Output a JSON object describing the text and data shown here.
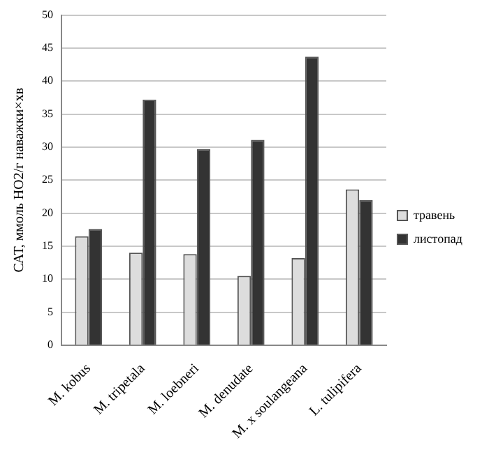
{
  "chart_data": {
    "type": "bar",
    "ylabel": "САТ, ммоль НО2/г наважки×хв",
    "categories": [
      "M. kobus",
      "M. tripetala",
      "M. loebneri",
      "M. denudate",
      "M. x soulangeana",
      "L. tulipifera"
    ],
    "series": [
      {
        "name": "травень",
        "color": "#dddddd",
        "values": [
          16.5,
          14.0,
          13.8,
          10.5,
          13.2,
          23.6
        ]
      },
      {
        "name": "листопад",
        "color": "#333333",
        "values": [
          17.6,
          37.2,
          29.7,
          31.1,
          43.7,
          22.0
        ]
      }
    ],
    "ylim": [
      0,
      50
    ],
    "yticks": [
      0,
      5,
      10,
      15,
      20,
      25,
      30,
      35,
      40,
      45,
      50
    ],
    "grid": "y",
    "legend": "right"
  }
}
